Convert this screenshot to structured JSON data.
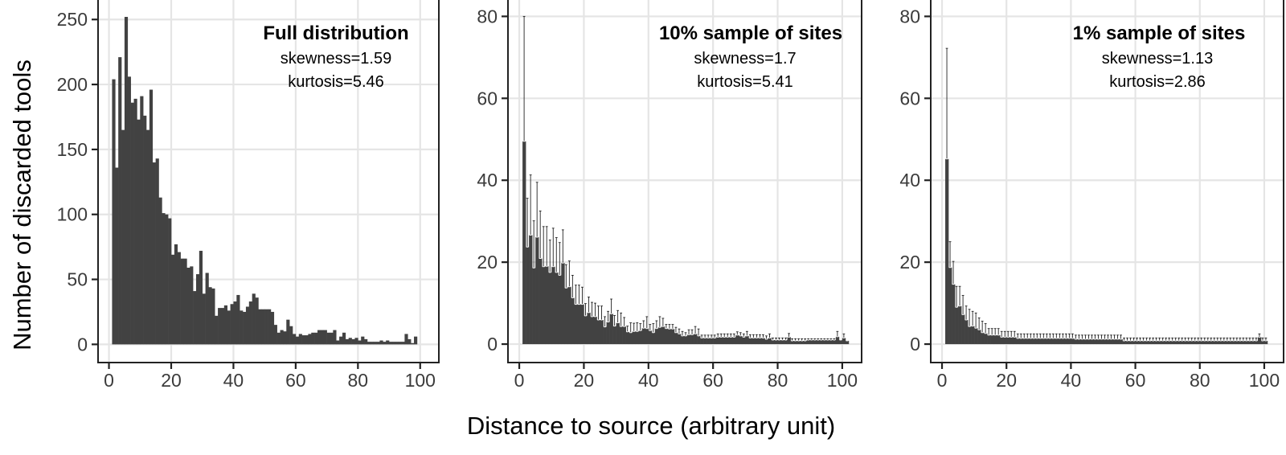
{
  "figure": {
    "y_axis_label": "Number of discarded tools",
    "x_axis_label": "Distance to source (arbitrary unit)",
    "bar_color": "#424242",
    "grid_color": "#e5e5e5",
    "panel_border_color": "#222222"
  },
  "panels": [
    {
      "title": "Full distribution",
      "stat1": "skewness=1.59",
      "stat2": "kurtosis=5.46"
    },
    {
      "title": "10% sample of sites",
      "stat1": "skewness=1.7",
      "stat2": "kurtosis=5.41"
    },
    {
      "title": "1% sample of sites",
      "stat1": "skewness=1.13",
      "stat2": "kurtosis=2.86"
    }
  ],
  "chart_data": [
    {
      "type": "bar",
      "title": "Full distribution",
      "annotations": [
        "skewness=1.59",
        "kurtosis=5.46"
      ],
      "xlabel": "Distance to source (arbitrary unit)",
      "ylabel": "Number of discarded tools",
      "xlim": [
        -3.5,
        106
      ],
      "ylim": [
        -14,
        265
      ],
      "xticks": [
        0,
        20,
        40,
        60,
        80,
        100
      ],
      "yticks": [
        0,
        50,
        100,
        150,
        200,
        250
      ],
      "grid": true,
      "bin_start": 1,
      "bin_width": 1,
      "values": [
        204,
        136,
        221,
        165,
        252,
        206,
        186,
        189,
        173,
        191,
        176,
        165,
        196,
        140,
        143,
        113,
        101,
        100,
        97,
        69,
        77,
        71,
        66,
        66,
        59,
        60,
        41,
        54,
        72,
        39,
        55,
        44,
        43,
        22,
        28,
        28,
        30,
        26,
        31,
        33,
        38,
        26,
        25,
        29,
        33,
        39,
        36,
        27,
        27,
        27,
        27,
        25,
        15,
        9,
        11,
        10,
        19,
        14,
        8,
        6,
        8,
        7,
        7,
        8,
        9,
        9,
        11,
        11,
        11,
        9,
        9,
        11,
        3,
        6,
        9,
        4,
        5,
        4,
        5,
        3,
        6,
        4,
        2,
        2,
        2,
        2,
        3,
        2,
        3,
        2,
        2,
        2,
        2,
        2,
        8,
        4,
        1,
        6,
        0,
        0
      ]
    },
    {
      "type": "bar",
      "title": "10% sample of sites",
      "annotations": [
        "skewness=1.7",
        "kurtosis=5.41"
      ],
      "xlabel": "Distance to source (arbitrary unit)",
      "ylabel": "Number of discarded tools",
      "xlim": [
        -3.5,
        106
      ],
      "ylim": [
        -4.5,
        84
      ],
      "xticks": [
        0,
        20,
        40,
        60,
        80,
        100
      ],
      "yticks": [
        0,
        20,
        40,
        60,
        80
      ],
      "grid": true,
      "error_bars": "upper",
      "bin_start": 1,
      "bin_width": 1,
      "values": [
        49.5,
        23.7,
        26.6,
        18.6,
        26.1,
        20.9,
        18.9,
        19.0,
        17.5,
        18.9,
        17.5,
        16.8,
        19.8,
        13.7,
        14.0,
        11.3,
        9.7,
        9.7,
        9.7,
        6.9,
        7.7,
        6.7,
        6.7,
        5.9,
        5.9,
        4.2,
        5.4,
        7.4,
        4.4,
        5.2,
        4.3,
        4.3,
        3.0,
        2.8,
        3.1,
        3.1,
        3.3,
        3.9,
        3.8,
        3.3,
        2.8,
        3.8,
        4.1,
        4.3,
        3.8,
        3.7,
        3.7,
        2.8,
        2.5,
        2.0,
        2.0,
        2.3,
        2.3,
        2.5,
        2.0,
        1.5,
        1.5,
        1.5,
        1.5,
        1.5,
        1.7,
        1.7,
        1.7,
        1.7,
        1.7,
        1.7,
        2.2,
        2.0,
        1.7,
        2.0,
        1.5,
        1.5,
        1.5,
        1.5,
        1.5,
        1.2,
        1.5,
        1.0,
        1.0,
        1.0,
        1.0,
        1.0,
        1.7,
        0.8,
        0.8,
        0.8,
        0.8,
        0.8,
        1.0,
        1.0,
        1.0,
        1.0,
        1.0,
        1.0,
        1.0,
        1.0,
        1.0,
        1.8,
        1.0,
        1.5,
        0.8
      ],
      "upper": [
        80,
        35.6,
        41.3,
        30.1,
        39.5,
        32.5,
        28.7,
        28.7,
        25.4,
        28.3,
        26.0,
        24.8,
        27.9,
        19.4,
        20.3,
        16.8,
        14.4,
        14.4,
        13.9,
        9.9,
        11.5,
        10.2,
        10.0,
        9.3,
        9.3,
        6.7,
        8.0,
        11.0,
        7.0,
        8.2,
        7.6,
        6.5,
        4.4,
        5.2,
        5.1,
        5.2,
        5.0,
        5.7,
        6.7,
        4.8,
        5.0,
        5.7,
        6.7,
        6.3,
        4.8,
        4.8,
        4.8,
        4.1,
        3.7,
        3.1,
        2.8,
        3.5,
        3.5,
        4.3,
        3.7,
        2.2,
        2.2,
        2.2,
        2.2,
        2.2,
        2.5,
        2.5,
        2.5,
        2.5,
        2.5,
        2.5,
        3.0,
        2.8,
        2.5,
        3.1,
        2.3,
        2.3,
        2.3,
        2.3,
        2.3,
        2.0,
        2.5,
        1.5,
        1.5,
        1.5,
        1.5,
        1.5,
        2.6,
        1.3,
        1.3,
        1.3,
        1.3,
        1.3,
        1.3,
        1.3,
        1.3,
        1.3,
        1.3,
        1.3,
        1.3,
        1.3,
        1.3,
        3.1,
        1.0,
        2.5,
        0.8
      ]
    },
    {
      "type": "bar",
      "title": "1% sample of sites",
      "annotations": [
        "skewness=1.13",
        "kurtosis=2.86"
      ],
      "xlabel": "Distance to source (arbitrary unit)",
      "ylabel": "Number of discarded tools",
      "xlim": [
        -3.5,
        106
      ],
      "ylim": [
        -4.5,
        84
      ],
      "xticks": [
        0,
        20,
        40,
        60,
        80,
        100
      ],
      "yticks": [
        0,
        20,
        40,
        60,
        80
      ],
      "grid": true,
      "error_bars": "upper",
      "bin_start": 1,
      "bin_width": 1,
      "values": [
        45.2,
        18.7,
        14.6,
        9.0,
        9.3,
        7.2,
        5.9,
        4.3,
        4.4,
        3.9,
        3.5,
        2.8,
        2.6,
        2.2,
        2.2,
        2.2,
        2.2,
        1.7,
        1.7,
        1.7,
        1.7,
        1.7,
        1.4,
        1.4,
        1.4,
        1.4,
        1.4,
        1.4,
        1.4,
        1.4,
        1.4,
        1.4,
        1.4,
        1.4,
        1.4,
        1.4,
        1.4,
        1.4,
        1.4,
        1.4,
        1.2,
        1.2,
        1.2,
        1.2,
        1.2,
        1.2,
        1.2,
        1.2,
        1.2,
        1.2,
        1.2,
        1.2,
        1.2,
        1.2,
        1.2,
        0.8,
        0.8,
        0.8,
        0.8,
        0.8,
        0.8,
        0.8,
        0.8,
        0.8,
        0.8,
        0.8,
        0.8,
        0.8,
        0.8,
        0.8,
        0.8,
        0.8,
        0.8,
        0.8,
        0.8,
        0.8,
        0.8,
        0.8,
        0.8,
        0.8,
        0.8,
        0.8,
        0.8,
        0.8,
        0.8,
        0.8,
        0.8,
        0.8,
        0.8,
        0.8,
        0.8,
        0.8,
        0.8,
        0.8,
        0.8,
        0.8,
        0.8,
        1.7,
        0.8,
        0.8
      ],
      "upper": [
        72.2,
        25.0,
        20.2,
        14.1,
        14.1,
        11.9,
        9.3,
        8.5,
        8.0,
        7.6,
        6.4,
        5.6,
        5.0,
        3.8,
        3.8,
        3.8,
        3.8,
        3.1,
        3.1,
        3.1,
        3.1,
        3.1,
        2.5,
        2.5,
        2.5,
        2.5,
        2.5,
        2.5,
        2.5,
        2.5,
        2.5,
        2.5,
        2.5,
        2.5,
        2.5,
        2.5,
        2.5,
        2.5,
        2.5,
        2.5,
        2.2,
        2.2,
        2.2,
        2.2,
        2.2,
        2.2,
        2.2,
        2.2,
        2.2,
        2.2,
        2.2,
        2.2,
        2.2,
        2.2,
        2.2,
        1.5,
        1.5,
        1.5,
        1.5,
        1.5,
        1.5,
        1.5,
        1.5,
        1.5,
        1.5,
        1.5,
        1.5,
        1.5,
        1.5,
        1.5,
        1.5,
        1.5,
        1.5,
        1.5,
        1.5,
        1.5,
        1.5,
        1.5,
        1.5,
        1.5,
        1.5,
        1.5,
        1.5,
        1.5,
        1.5,
        1.5,
        1.5,
        1.5,
        1.5,
        1.5,
        1.5,
        1.5,
        1.5,
        1.5,
        1.5,
        1.5,
        1.5,
        2.5,
        1.5,
        1.5
      ]
    }
  ]
}
